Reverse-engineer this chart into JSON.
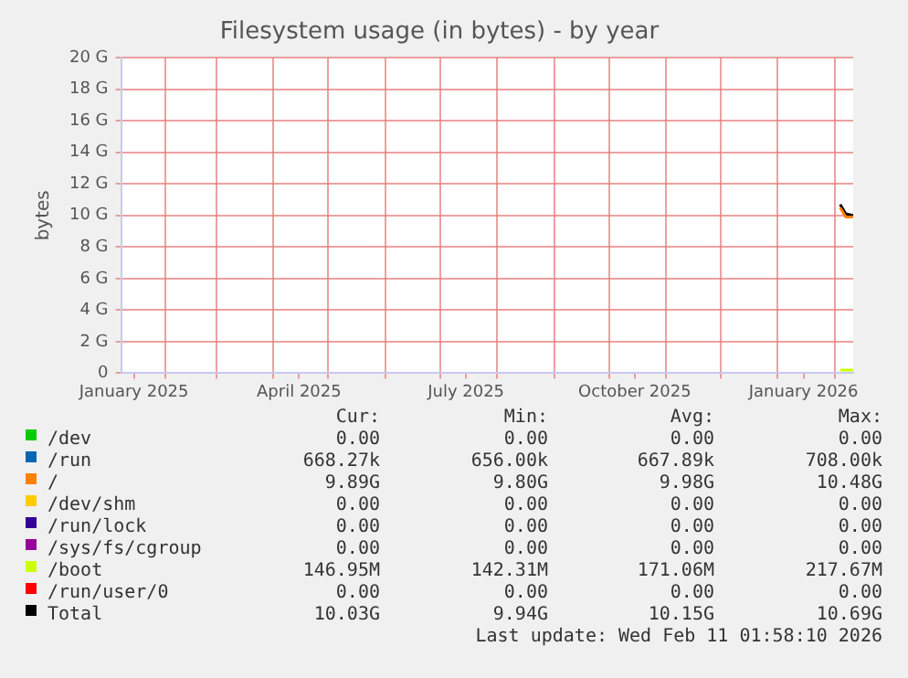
{
  "chart_data": {
    "type": "line",
    "title": "Filesystem usage (in bytes) - by year",
    "ylabel": "bytes",
    "x": [
      "2026-02-04",
      "2026-02-07",
      "2026-02-11"
    ],
    "xlim": [
      "2025-01-08",
      "2026-02-11T02:00"
    ],
    "xticks": [
      {
        "value": "2025-01-15",
        "label": "January 2025"
      },
      {
        "value": "2025-02-01",
        "label": null
      },
      {
        "value": "2025-03-01",
        "label": null
      },
      {
        "value": "2025-04-01",
        "label": null
      },
      {
        "value": "2025-04-15",
        "label": "April 2025"
      },
      {
        "value": "2025-05-01",
        "label": null
      },
      {
        "value": "2025-06-01",
        "label": null
      },
      {
        "value": "2025-07-01",
        "label": null
      },
      {
        "value": "2025-07-15",
        "label": "July 2025"
      },
      {
        "value": "2025-08-01",
        "label": null
      },
      {
        "value": "2025-09-01",
        "label": null
      },
      {
        "value": "2025-10-01",
        "label": null
      },
      {
        "value": "2025-10-15",
        "label": "October 2025"
      },
      {
        "value": "2025-11-01",
        "label": null
      },
      {
        "value": "2025-12-01",
        "label": null
      },
      {
        "value": "2026-01-01",
        "label": null
      },
      {
        "value": "2026-01-15",
        "label": "January 2026"
      },
      {
        "value": "2026-02-01",
        "label": null
      }
    ],
    "ylim": [
      0,
      20
    ],
    "yticks": [
      {
        "value": 0,
        "label": "0"
      },
      {
        "value": 2,
        "label": "2 G"
      },
      {
        "value": 4,
        "label": "4 G"
      },
      {
        "value": 6,
        "label": "6 G"
      },
      {
        "value": 8,
        "label": "8 G"
      },
      {
        "value": 10,
        "label": "10 G"
      },
      {
        "value": 12,
        "label": "12 G"
      },
      {
        "value": 14,
        "label": "14 G"
      },
      {
        "value": 16,
        "label": "16 G"
      },
      {
        "value": 18,
        "label": "18 G"
      },
      {
        "value": 20,
        "label": "20 G"
      }
    ],
    "grid": true,
    "legend": "bottom",
    "marker": "none",
    "series": [
      {
        "name": "/dev",
        "color": "#00cc00",
        "values": [
          null,
          null,
          null
        ]
      },
      {
        "name": "/run",
        "color": "#0066b3",
        "values": [
          null,
          null,
          null
        ]
      },
      {
        "name": "/",
        "color": "#ff8000",
        "values": [
          10.5,
          9.9,
          9.9
        ]
      },
      {
        "name": "/dev/shm",
        "color": "#ffcc00",
        "values": [
          null,
          null,
          null
        ]
      },
      {
        "name": "/run/lock",
        "color": "#330099",
        "values": [
          null,
          null,
          null
        ]
      },
      {
        "name": "/sys/fs/cgroup",
        "color": "#990099",
        "values": [
          null,
          null,
          null
        ]
      },
      {
        "name": "/boot",
        "color": "#ccff00",
        "values": [
          0.2,
          0.2,
          0.2
        ]
      },
      {
        "name": "/run/user/0",
        "color": "#ff0000",
        "values": [
          null,
          null,
          null
        ]
      },
      {
        "name": "Total",
        "color": "#000000",
        "values": [
          10.7,
          10.1,
          10.0
        ]
      }
    ],
    "annotations": [
      "Cur:",
      "Min:",
      "Avg:",
      "Max:",
      "0.00",
      "0.00",
      "0.00",
      "0.00",
      "668.27k",
      "656.00k",
      "667.89k",
      "708.00k",
      "9.89G",
      "9.80G",
      "9.98G",
      "10.48G",
      "0.00",
      "0.00",
      "0.00",
      "0.00",
      "0.00",
      "0.00",
      "0.00",
      "0.00",
      "0.00",
      "0.00",
      "0.00",
      "0.00",
      "146.95M",
      "142.31M",
      "171.06M",
      "217.67M",
      "0.00",
      "0.00",
      "0.00",
      "0.00",
      "10.03G",
      "9.94G",
      "10.15G",
      "10.69G",
      "Last update: Wed Feb 11 01:58:10 2026"
    ]
  }
}
